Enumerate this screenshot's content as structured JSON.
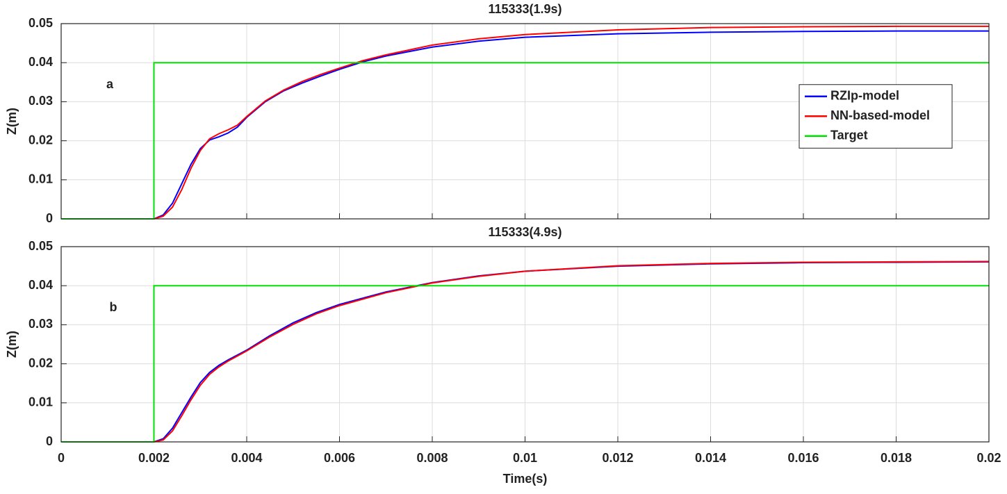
{
  "chart_data": [
    {
      "type": "line",
      "title": "115333(1.9s)",
      "ylabel": "Z(m)",
      "annotation": "a",
      "legend": "right",
      "grid": true,
      "xlim": [
        0,
        0.02
      ],
      "xticks": [
        0,
        0.002,
        0.004,
        0.006,
        0.008,
        0.01,
        0.012,
        0.014,
        0.016,
        0.018,
        0.02
      ],
      "ylim": [
        0,
        0.05
      ],
      "yticks": [
        0,
        0.01,
        0.02,
        0.03,
        0.04,
        0.05
      ],
      "series": [
        {
          "name": "RZIp-model",
          "color": "#0000ff",
          "x": [
            0,
            0.002,
            0.0022,
            0.0024,
            0.0026,
            0.0028,
            0.003,
            0.0032,
            0.0034,
            0.0036,
            0.0038,
            0.004,
            0.0044,
            0.0048,
            0.0052,
            0.0056,
            0.006,
            0.0065,
            0.007,
            0.008,
            0.009,
            0.01,
            0.012,
            0.014,
            0.016,
            0.018,
            0.02
          ],
          "values": [
            0,
            0,
            0.001,
            0.004,
            0.009,
            0.014,
            0.018,
            0.0202,
            0.021,
            0.022,
            0.0235,
            0.026,
            0.03,
            0.0328,
            0.0348,
            0.0366,
            0.0383,
            0.0402,
            0.0417,
            0.044,
            0.0455,
            0.0465,
            0.0474,
            0.0478,
            0.048,
            0.0481,
            0.0481
          ]
        },
        {
          "name": "NN-based-model",
          "color": "#ff0000",
          "x": [
            0,
            0.002,
            0.0022,
            0.0024,
            0.0026,
            0.0028,
            0.003,
            0.0032,
            0.0034,
            0.0036,
            0.0038,
            0.004,
            0.0044,
            0.0048,
            0.0052,
            0.0056,
            0.006,
            0.0065,
            0.007,
            0.008,
            0.009,
            0.01,
            0.012,
            0.014,
            0.016,
            0.018,
            0.02
          ],
          "values": [
            0,
            0,
            0.0007,
            0.003,
            0.0075,
            0.013,
            0.0175,
            0.0205,
            0.0218,
            0.0228,
            0.024,
            0.0262,
            0.0302,
            0.033,
            0.0352,
            0.037,
            0.0386,
            0.0405,
            0.042,
            0.0445,
            0.0461,
            0.0472,
            0.0484,
            0.049,
            0.0492,
            0.0493,
            0.0493
          ]
        },
        {
          "name": "Target",
          "color": "#00e000",
          "x": [
            0,
            0.002,
            0.002,
            0.02
          ],
          "values": [
            0,
            0,
            0.04,
            0.04
          ]
        }
      ]
    },
    {
      "type": "line",
      "title": "115333(4.9s)",
      "ylabel": "Z(m)",
      "xlabel": "Time(s)",
      "annotation": "b",
      "grid": true,
      "xlim": [
        0,
        0.02
      ],
      "xticks": [
        0,
        0.002,
        0.004,
        0.006,
        0.008,
        0.01,
        0.012,
        0.014,
        0.016,
        0.018,
        0.02
      ],
      "ylim": [
        0,
        0.05
      ],
      "yticks": [
        0,
        0.01,
        0.02,
        0.03,
        0.04,
        0.05
      ],
      "series": [
        {
          "color": "#0000ff",
          "x": [
            0,
            0.002,
            0.0022,
            0.0024,
            0.0026,
            0.0028,
            0.003,
            0.0032,
            0.0034,
            0.0036,
            0.004,
            0.0045,
            0.005,
            0.0055,
            0.006,
            0.007,
            0.008,
            0.009,
            0.01,
            0.012,
            0.014,
            0.016,
            0.018,
            0.02
          ],
          "values": [
            0,
            0,
            0.0008,
            0.0035,
            0.0075,
            0.0115,
            0.0152,
            0.0178,
            0.0196,
            0.021,
            0.0235,
            0.0272,
            0.0305,
            0.0331,
            0.0352,
            0.0384,
            0.0408,
            0.0425,
            0.0437,
            0.045,
            0.0456,
            0.0459,
            0.046,
            0.0461
          ]
        },
        {
          "color": "#ff0000",
          "x": [
            0,
            0.002,
            0.0022,
            0.0024,
            0.0026,
            0.0028,
            0.003,
            0.0032,
            0.0034,
            0.0036,
            0.004,
            0.0045,
            0.005,
            0.0055,
            0.006,
            0.007,
            0.008,
            0.009,
            0.01,
            0.012,
            0.014,
            0.016,
            0.018,
            0.02
          ],
          "values": [
            0,
            0,
            0.0005,
            0.0028,
            0.0067,
            0.0108,
            0.0145,
            0.0173,
            0.0192,
            0.0207,
            0.0233,
            0.0269,
            0.0301,
            0.0328,
            0.0349,
            0.0382,
            0.0407,
            0.0424,
            0.0437,
            0.0451,
            0.0457,
            0.046,
            0.0461,
            0.0462
          ]
        },
        {
          "color": "#00e000",
          "x": [
            0,
            0.002,
            0.002,
            0.02
          ],
          "values": [
            0,
            0,
            0.04,
            0.04
          ]
        }
      ]
    }
  ]
}
